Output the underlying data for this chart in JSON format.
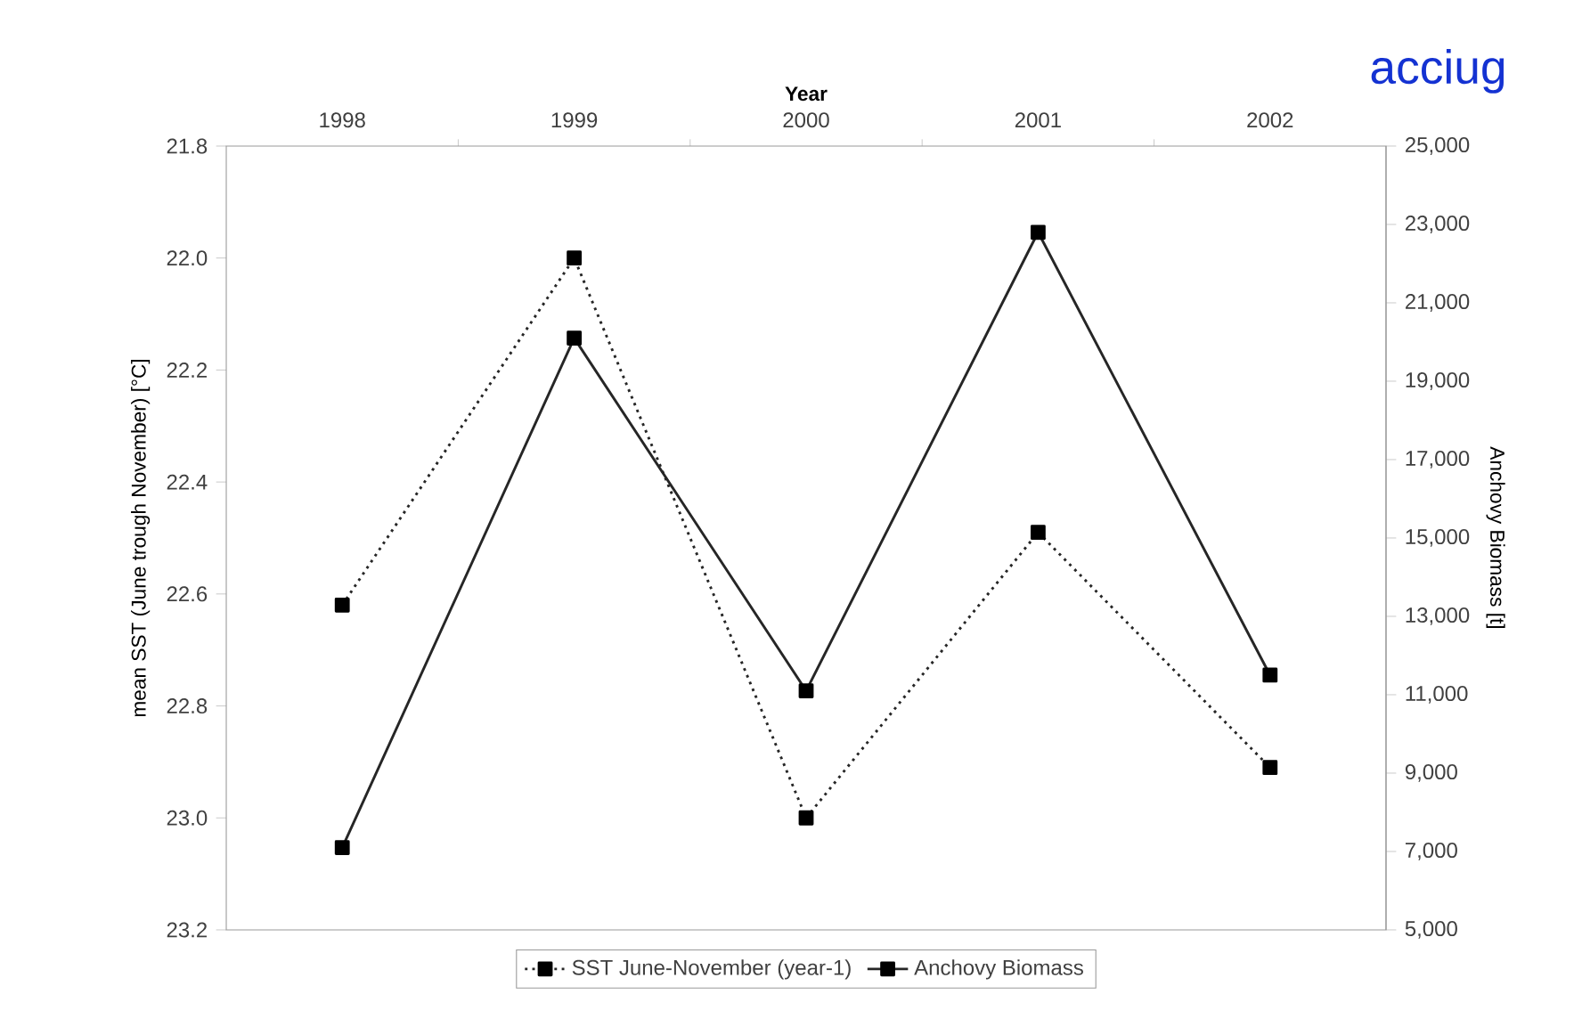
{
  "chart_data": {
    "type": "line",
    "xlabel": "Year",
    "ylabel": "mean SST (June trough November) [°C]",
    "y2label": "Anchovy Biomass [t]",
    "categories": [
      "1998",
      "1999",
      "2000",
      "2001",
      "2002"
    ],
    "series": [
      {
        "name": "SST June-November (year-1)",
        "color": "#262626",
        "line_style": "dotted",
        "values": [
          22.62,
          22.0,
          23.0,
          22.49,
          22.91
        ]
      },
      {
        "name": "Anchovy Biomass",
        "color": "#262626",
        "line_style": "solid",
        "axis": "y2",
        "values": [
          7100,
          20100,
          11100,
          22800,
          11500
        ]
      }
    ],
    "ylim": [
      23.2,
      21.8
    ],
    "yticks": [
      {
        "value": 21.8,
        "label": "21.8"
      },
      {
        "value": 22.0,
        "label": "22.0"
      },
      {
        "value": 22.2,
        "label": "22.2"
      },
      {
        "value": 22.4,
        "label": "22.4"
      },
      {
        "value": 22.6,
        "label": "22.6"
      },
      {
        "value": 22.8,
        "label": "22.8"
      },
      {
        "value": 23.0,
        "label": "23.0"
      },
      {
        "value": 23.2,
        "label": "23.2"
      }
    ],
    "y2lim": [
      5000,
      25000
    ],
    "y2ticks": [
      {
        "value": 5000,
        "label": "5,000"
      },
      {
        "value": 7000,
        "label": "7,000"
      },
      {
        "value": 9000,
        "label": "9,000"
      },
      {
        "value": 11000,
        "label": "11,000"
      },
      {
        "value": 13000,
        "label": "13,000"
      },
      {
        "value": 15000,
        "label": "15,000"
      },
      {
        "value": 17000,
        "label": "17,000"
      },
      {
        "value": 19000,
        "label": "19,000"
      },
      {
        "value": 21000,
        "label": "21,000"
      },
      {
        "value": 23000,
        "label": "23,000"
      },
      {
        "value": 25000,
        "label": "25,000"
      }
    ],
    "marker": "square",
    "legend": "bottom",
    "annotations": [
      "acciug"
    ]
  }
}
